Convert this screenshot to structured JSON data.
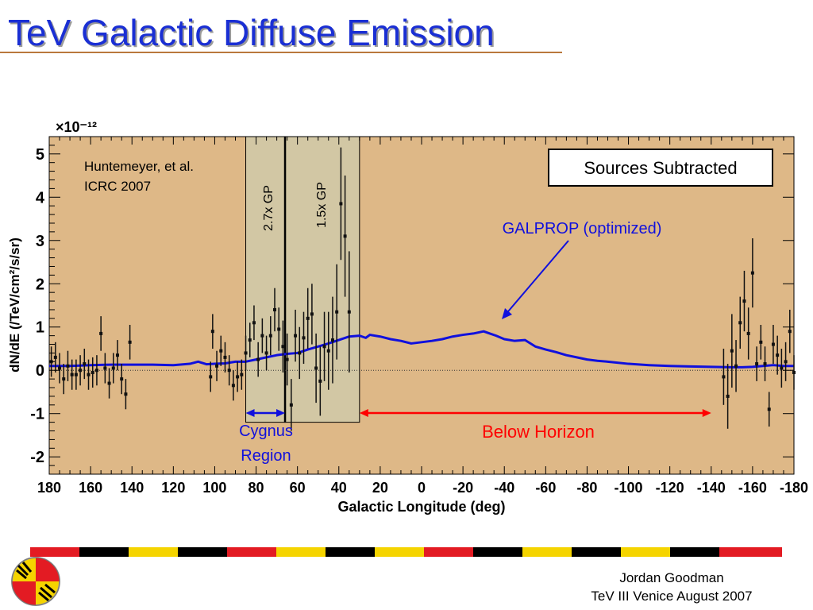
{
  "slide": {
    "title": "TeV Galactic Diffuse Emission",
    "footer_author": "Jordan Goodman",
    "footer_event": "TeV III Venice August 2007"
  },
  "colors": {
    "title": "#1a2fd4",
    "plot_background": "#deb887",
    "band_fill": "#d2c7a4",
    "galprop_line": "#1010dd",
    "below_horizon": "#ff0000",
    "cygnus": "#1010dd"
  },
  "chart_data": {
    "type": "scatter",
    "xlabel": "Galactic Longitude (deg)",
    "ylabel": "dN/dE (/TeV/cm²/s/sr)",
    "y_multiplier": "×10⁻¹²",
    "xlim": [
      180,
      -180
    ],
    "ylim": [
      -2.4,
      5.4
    ],
    "x_ticks": [
      180,
      160,
      140,
      120,
      100,
      80,
      60,
      40,
      20,
      0,
      -20,
      -40,
      -60,
      -80,
      -100,
      -120,
      -140,
      -160,
      -180
    ],
    "y_ticks": [
      -2,
      -1,
      0,
      1,
      2,
      3,
      4,
      5
    ],
    "grid": false,
    "annotations": {
      "citation_line1": "Huntemeyer, et al.",
      "citation_line2": "ICRC 2007",
      "box_label": "Sources Subtracted",
      "band_left_label": "2.7x GP",
      "band_right_label": "1.5x GP",
      "galprop_label": "GALPROP (optimized)",
      "cygnus_line1": "Cygnus",
      "cygnus_line2": "Region",
      "below_horizon_label": "Below Horizon"
    },
    "regions": [
      {
        "name": "2.7x GP",
        "x_from": 85,
        "x_to": 66
      },
      {
        "name": "1.5x GP",
        "x_from": 66,
        "x_to": 30
      }
    ],
    "cygnus_arrow": [
      85,
      66
    ],
    "below_horizon_arrow": [
      30,
      -140
    ],
    "series": [
      {
        "name": "GALPROP (optimized)",
        "type": "line",
        "points": [
          [
            180,
            0.1
          ],
          [
            170,
            0.1
          ],
          [
            160,
            0.12
          ],
          [
            150,
            0.13
          ],
          [
            140,
            0.13
          ],
          [
            130,
            0.13
          ],
          [
            120,
            0.12
          ],
          [
            112,
            0.15
          ],
          [
            108,
            0.2
          ],
          [
            104,
            0.14
          ],
          [
            100,
            0.15
          ],
          [
            95,
            0.16
          ],
          [
            90,
            0.2
          ],
          [
            85,
            0.2
          ],
          [
            80,
            0.25
          ],
          [
            75,
            0.3
          ],
          [
            70,
            0.35
          ],
          [
            65,
            0.38
          ],
          [
            60,
            0.4
          ],
          [
            55,
            0.48
          ],
          [
            50,
            0.55
          ],
          [
            45,
            0.62
          ],
          [
            40,
            0.7
          ],
          [
            35,
            0.78
          ],
          [
            30,
            0.8
          ],
          [
            27,
            0.75
          ],
          [
            25,
            0.82
          ],
          [
            20,
            0.78
          ],
          [
            15,
            0.72
          ],
          [
            10,
            0.68
          ],
          [
            5,
            0.62
          ],
          [
            0,
            0.65
          ],
          [
            -5,
            0.68
          ],
          [
            -10,
            0.72
          ],
          [
            -15,
            0.78
          ],
          [
            -20,
            0.82
          ],
          [
            -25,
            0.85
          ],
          [
            -30,
            0.9
          ],
          [
            -33,
            0.85
          ],
          [
            -36,
            0.8
          ],
          [
            -40,
            0.72
          ],
          [
            -45,
            0.68
          ],
          [
            -50,
            0.7
          ],
          [
            -55,
            0.55
          ],
          [
            -60,
            0.48
          ],
          [
            -65,
            0.42
          ],
          [
            -70,
            0.35
          ],
          [
            -75,
            0.3
          ],
          [
            -80,
            0.25
          ],
          [
            -85,
            0.22
          ],
          [
            -90,
            0.2
          ],
          [
            -100,
            0.15
          ],
          [
            -110,
            0.12
          ],
          [
            -120,
            0.1
          ],
          [
            -130,
            0.09
          ],
          [
            -140,
            0.08
          ],
          [
            -150,
            0.07
          ],
          [
            -155,
            0.07
          ],
          [
            -160,
            0.08
          ],
          [
            -165,
            0.1
          ],
          [
            -170,
            0.12
          ],
          [
            -175,
            0.1
          ],
          [
            -180,
            0.1
          ]
        ]
      },
      {
        "name": "data",
        "type": "scatter",
        "points": [
          [
            179,
            0.2,
            0.35
          ],
          [
            177,
            0.3,
            0.35
          ],
          [
            175,
            0.05,
            0.35
          ],
          [
            173,
            -0.2,
            0.35
          ],
          [
            171,
            0.1,
            0.35
          ],
          [
            169,
            -0.1,
            0.35
          ],
          [
            167,
            -0.1,
            0.35
          ],
          [
            165,
            0.0,
            0.35
          ],
          [
            163,
            0.15,
            0.35
          ],
          [
            161,
            -0.1,
            0.35
          ],
          [
            159,
            -0.05,
            0.35
          ],
          [
            157,
            0.0,
            0.35
          ],
          [
            155,
            0.85,
            0.4
          ],
          [
            153,
            0.05,
            0.35
          ],
          [
            151,
            -0.3,
            0.35
          ],
          [
            149,
            0.05,
            0.35
          ],
          [
            147,
            0.35,
            0.35
          ],
          [
            145,
            -0.2,
            0.35
          ],
          [
            143,
            -0.55,
            0.35
          ],
          [
            141,
            0.65,
            0.4
          ],
          [
            102,
            -0.15,
            0.35
          ],
          [
            101,
            0.9,
            0.4
          ],
          [
            99,
            0.1,
            0.35
          ],
          [
            97,
            0.45,
            0.35
          ],
          [
            95,
            0.3,
            0.35
          ],
          [
            93,
            0.0,
            0.35
          ],
          [
            91,
            -0.35,
            0.35
          ],
          [
            89,
            -0.15,
            0.35
          ],
          [
            87,
            -0.1,
            0.35
          ],
          [
            85,
            0.4,
            0.4
          ],
          [
            83,
            0.7,
            0.4
          ],
          [
            81,
            1.1,
            0.4
          ],
          [
            79,
            0.25,
            0.4
          ],
          [
            77,
            0.8,
            0.4
          ],
          [
            75,
            0.4,
            0.4
          ],
          [
            73,
            0.8,
            0.45
          ],
          [
            71,
            1.4,
            0.5
          ],
          [
            69,
            0.95,
            0.5
          ],
          [
            67,
            0.55,
            0.6
          ],
          [
            65,
            0.25,
            0.6
          ],
          [
            63,
            -0.8,
            0.6
          ],
          [
            61,
            0.8,
            0.6
          ],
          [
            59,
            0.4,
            0.6
          ],
          [
            57,
            0.75,
            0.6
          ],
          [
            55,
            1.2,
            0.7
          ],
          [
            53,
            1.3,
            0.7
          ],
          [
            51,
            0.05,
            0.8
          ],
          [
            49,
            -0.25,
            0.8
          ],
          [
            47,
            0.55,
            0.8
          ],
          [
            45,
            0.45,
            0.9
          ],
          [
            43,
            0.7,
            1.0
          ],
          [
            41,
            1.35,
            1.1
          ],
          [
            39,
            3.85,
            1.3
          ],
          [
            37,
            3.1,
            1.4
          ],
          [
            35,
            1.35,
            1.4
          ],
          [
            -146,
            -0.15,
            0.65
          ],
          [
            -148,
            -0.6,
            0.75
          ],
          [
            -150,
            0.45,
            0.85
          ],
          [
            -152,
            0.1,
            0.6
          ],
          [
            -154,
            1.1,
            0.6
          ],
          [
            -156,
            1.6,
            0.7
          ],
          [
            -158,
            0.85,
            0.6
          ],
          [
            -160,
            2.25,
            0.8
          ],
          [
            -162,
            0.15,
            0.4
          ],
          [
            -164,
            0.65,
            0.4
          ],
          [
            -166,
            0.15,
            0.4
          ],
          [
            -168,
            -0.9,
            0.4
          ],
          [
            -170,
            0.6,
            0.45
          ],
          [
            -172,
            0.35,
            0.45
          ],
          [
            -174,
            0.05,
            0.45
          ],
          [
            -176,
            0.2,
            0.45
          ],
          [
            -178,
            0.9,
            0.5
          ],
          [
            -180,
            -0.05,
            0.4
          ]
        ]
      }
    ]
  }
}
